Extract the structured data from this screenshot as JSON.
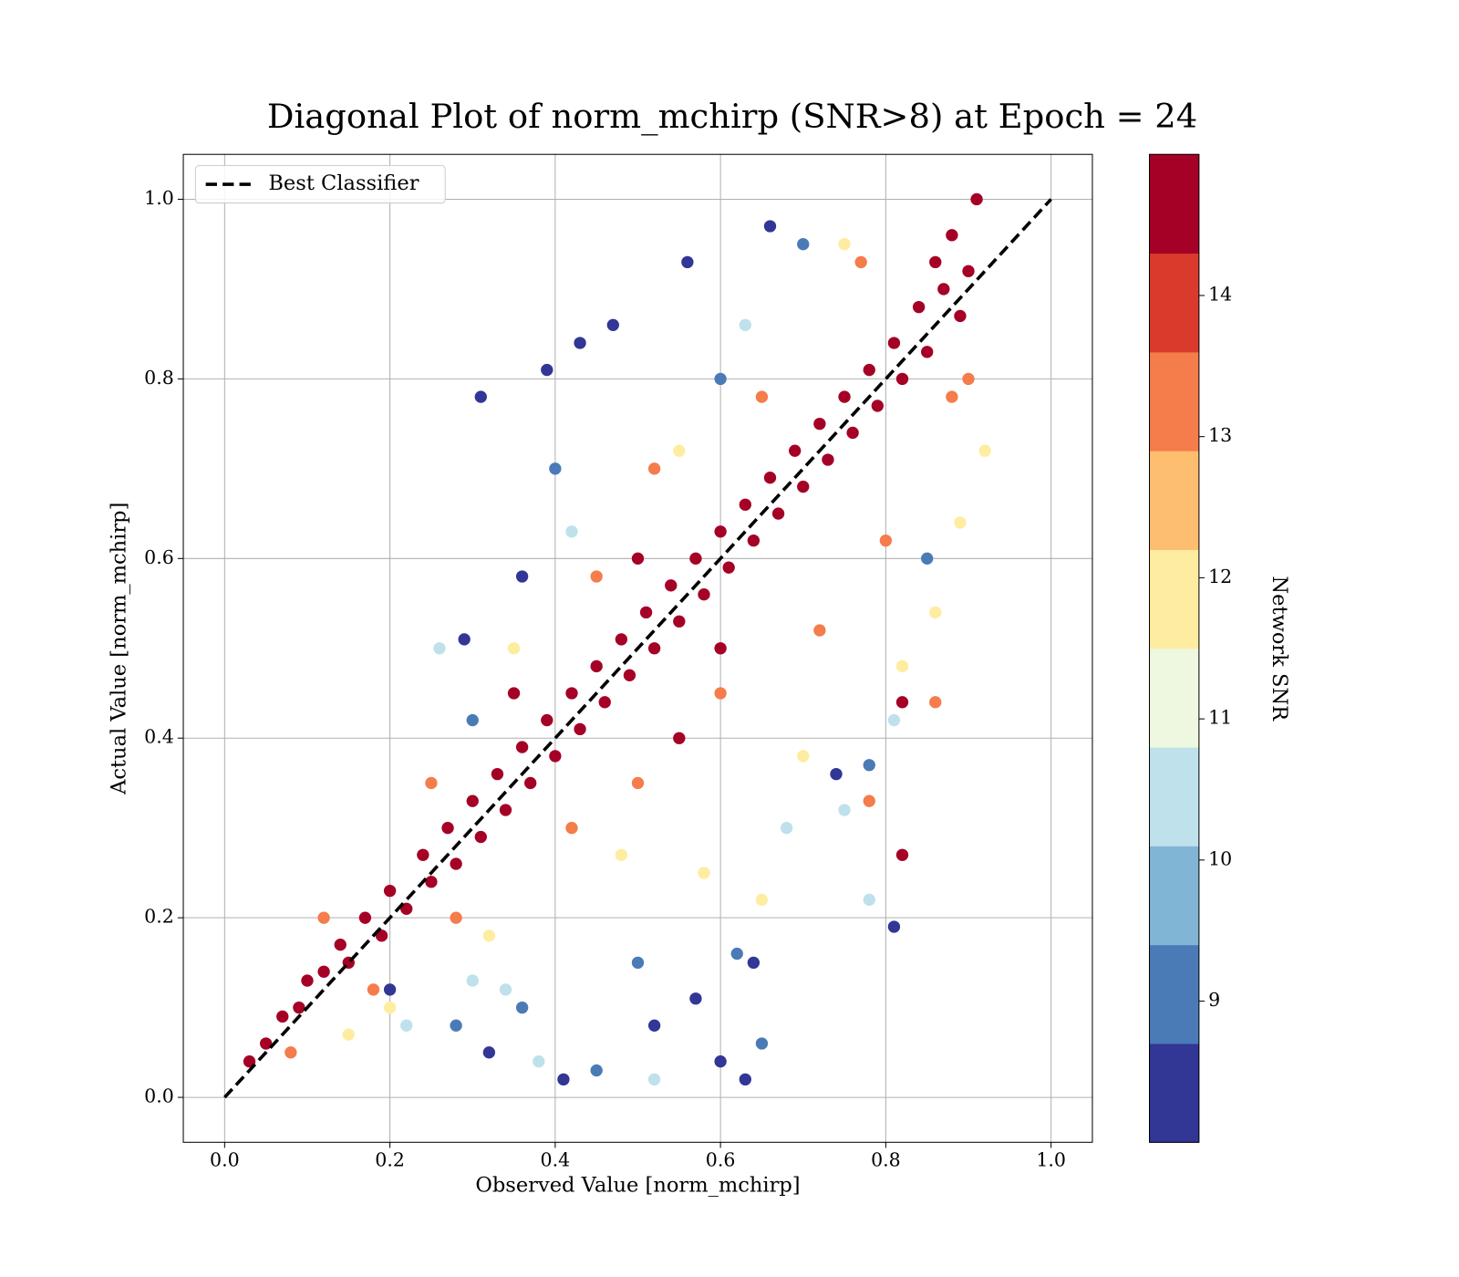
{
  "chart_data": {
    "type": "scatter",
    "title": "Diagonal Plot of norm_mchirp (SNR>8) at Epoch = 24",
    "x_label": "Observed Value [norm_mchirp]",
    "y_label": "Actual Value [norm_mchirp]",
    "xlim": [
      -0.05,
      1.05
    ],
    "ylim": [
      -0.05,
      1.05
    ],
    "xticks": [
      {
        "value": 0,
        "label": "0.0"
      },
      0.2,
      0.4,
      0.6,
      0.8,
      {
        "value": 1,
        "label": "1.0"
      }
    ],
    "yticks": [
      {
        "value": 0,
        "label": "0.0"
      },
      0.2,
      0.4,
      0.6,
      0.8,
      {
        "value": 1,
        "label": "1.0"
      }
    ],
    "grid": true,
    "x": [
      0.31,
      0.39,
      0.43,
      0.47,
      0.56,
      0.2,
      0.32,
      0.41,
      0.57,
      0.6,
      0.64,
      0.81,
      0.52,
      0.29,
      0.36,
      0.66,
      0.74,
      0.63,
      0.28,
      0.36,
      0.3,
      0.4,
      0.6,
      0.7,
      0.65,
      0.62,
      0.78,
      0.5,
      0.45,
      0.85,
      0.22,
      0.3,
      0.26,
      0.42,
      0.63,
      0.75,
      0.78,
      0.52,
      0.38,
      0.81,
      0.68,
      0.34,
      0.15,
      0.2,
      0.32,
      0.48,
      0.58,
      0.7,
      0.35,
      0.55,
      0.75,
      0.92,
      0.89,
      0.86,
      0.65,
      0.82,
      0.08,
      0.18,
      0.28,
      0.42,
      0.6,
      0.25,
      0.45,
      0.65,
      0.8,
      0.88,
      0.9,
      0.77,
      0.12,
      0.5,
      0.72,
      0.78,
      0.52,
      0.86,
      0.03,
      0.05,
      0.07,
      0.09,
      0.1,
      0.12,
      0.14,
      0.15,
      0.17,
      0.19,
      0.2,
      0.22,
      0.24,
      0.25,
      0.27,
      0.28,
      0.3,
      0.31,
      0.33,
      0.34,
      0.36,
      0.37,
      0.39,
      0.4,
      0.42,
      0.43,
      0.45,
      0.46,
      0.48,
      0.49,
      0.51,
      0.52,
      0.54,
      0.55,
      0.57,
      0.58,
      0.6,
      0.61,
      0.63,
      0.64,
      0.66,
      0.67,
      0.69,
      0.7,
      0.72,
      0.73,
      0.75,
      0.76,
      0.78,
      0.79,
      0.81,
      0.82,
      0.84,
      0.85,
      0.86,
      0.87,
      0.88,
      0.89,
      0.9,
      0.91,
      0.82,
      0.82,
      0.55,
      0.35,
      0.6,
      0.5
    ],
    "values": [
      0.78,
      0.81,
      0.84,
      0.86,
      0.93,
      0.12,
      0.05,
      0.02,
      0.11,
      0.04,
      0.15,
      0.19,
      0.08,
      0.51,
      0.58,
      0.97,
      0.36,
      0.02,
      0.08,
      0.1,
      0.42,
      0.7,
      0.8,
      0.95,
      0.06,
      0.16,
      0.37,
      0.15,
      0.03,
      0.6,
      0.08,
      0.13,
      0.5,
      0.63,
      0.86,
      0.32,
      0.22,
      0.02,
      0.04,
      0.42,
      0.3,
      0.12,
      0.07,
      0.1,
      0.18,
      0.27,
      0.25,
      0.38,
      0.5,
      0.72,
      0.95,
      0.72,
      0.64,
      0.54,
      0.22,
      0.48,
      0.05,
      0.12,
      0.2,
      0.3,
      0.45,
      0.35,
      0.58,
      0.78,
      0.62,
      0.78,
      0.8,
      0.93,
      0.2,
      0.35,
      0.52,
      0.33,
      0.7,
      0.44,
      0.04,
      0.06,
      0.09,
      0.1,
      0.13,
      0.14,
      0.17,
      0.15,
      0.2,
      0.18,
      0.23,
      0.21,
      0.27,
      0.24,
      0.3,
      0.26,
      0.33,
      0.29,
      0.36,
      0.32,
      0.39,
      0.35,
      0.42,
      0.38,
      0.45,
      0.41,
      0.48,
      0.44,
      0.51,
      0.47,
      0.54,
      0.5,
      0.57,
      0.53,
      0.6,
      0.56,
      0.63,
      0.59,
      0.66,
      0.62,
      0.69,
      0.65,
      0.72,
      0.68,
      0.75,
      0.71,
      0.78,
      0.74,
      0.81,
      0.77,
      0.84,
      0.8,
      0.88,
      0.83,
      0.93,
      0.9,
      0.96,
      0.87,
      0.92,
      1.0,
      0.27,
      0.44,
      0.4,
      0.45,
      0.5,
      0.6
    ],
    "snr": [
      8.3,
      8.3,
      8.3,
      8.3,
      8.3,
      8.3,
      8.3,
      8.3,
      8.3,
      8.3,
      8.3,
      8.3,
      8.3,
      8.3,
      8.3,
      8.3,
      8.3,
      8.3,
      9.3,
      9.3,
      9.3,
      9.3,
      9.3,
      9.3,
      9.3,
      9.3,
      9.3,
      9.3,
      9.3,
      9.3,
      10.3,
      10.3,
      10.3,
      10.3,
      10.3,
      10.3,
      10.3,
      10.3,
      10.3,
      10.3,
      10.3,
      10.3,
      11.8,
      11.8,
      11.8,
      11.8,
      11.8,
      11.8,
      11.8,
      11.8,
      11.8,
      11.8,
      11.8,
      11.8,
      11.8,
      11.8,
      13.3,
      13.3,
      13.3,
      13.3,
      13.3,
      13.3,
      13.3,
      13.3,
      13.3,
      13.3,
      13.3,
      13.3,
      13.3,
      13.3,
      13.3,
      13.3,
      13.3,
      13.3,
      14.7,
      14.7,
      14.7,
      14.7,
      14.7,
      14.7,
      14.7,
      14.7,
      14.7,
      14.7,
      14.7,
      14.7,
      14.7,
      14.7,
      14.7,
      14.7,
      14.7,
      14.7,
      14.7,
      14.7,
      14.7,
      14.7,
      14.7,
      14.7,
      14.7,
      14.7,
      14.7,
      14.7,
      14.7,
      14.7,
      14.7,
      14.7,
      14.7,
      14.7,
      14.7,
      14.7,
      14.7,
      14.7,
      14.7,
      14.7,
      14.7,
      14.7,
      14.7,
      14.7,
      14.7,
      14.7,
      14.7,
      14.7,
      14.7,
      14.7,
      14.7,
      14.7,
      14.7,
      14.7,
      14.7,
      14.7,
      14.7,
      14.7,
      14.7,
      14.7,
      14.7,
      14.7,
      14.7,
      14.7,
      14.7,
      14.7
    ],
    "reference_line": {
      "name": "Best Classifier",
      "x": [
        0,
        1
      ],
      "values": [
        0,
        1
      ],
      "color": "#000000",
      "dashed": true
    },
    "legend": "upper left",
    "colorbar": {
      "label": "Network SNR",
      "lim": [
        8,
        15
      ],
      "ticks": [
        9,
        10,
        11,
        12,
        13,
        14
      ],
      "colors": [
        "#323695",
        "#4a7bb7",
        "#80b5d6",
        "#bee1ec",
        "#eef7df",
        "#feeca0",
        "#fdbe6f",
        "#f57c4b",
        "#da3a2b",
        "#a50026"
      ]
    }
  }
}
